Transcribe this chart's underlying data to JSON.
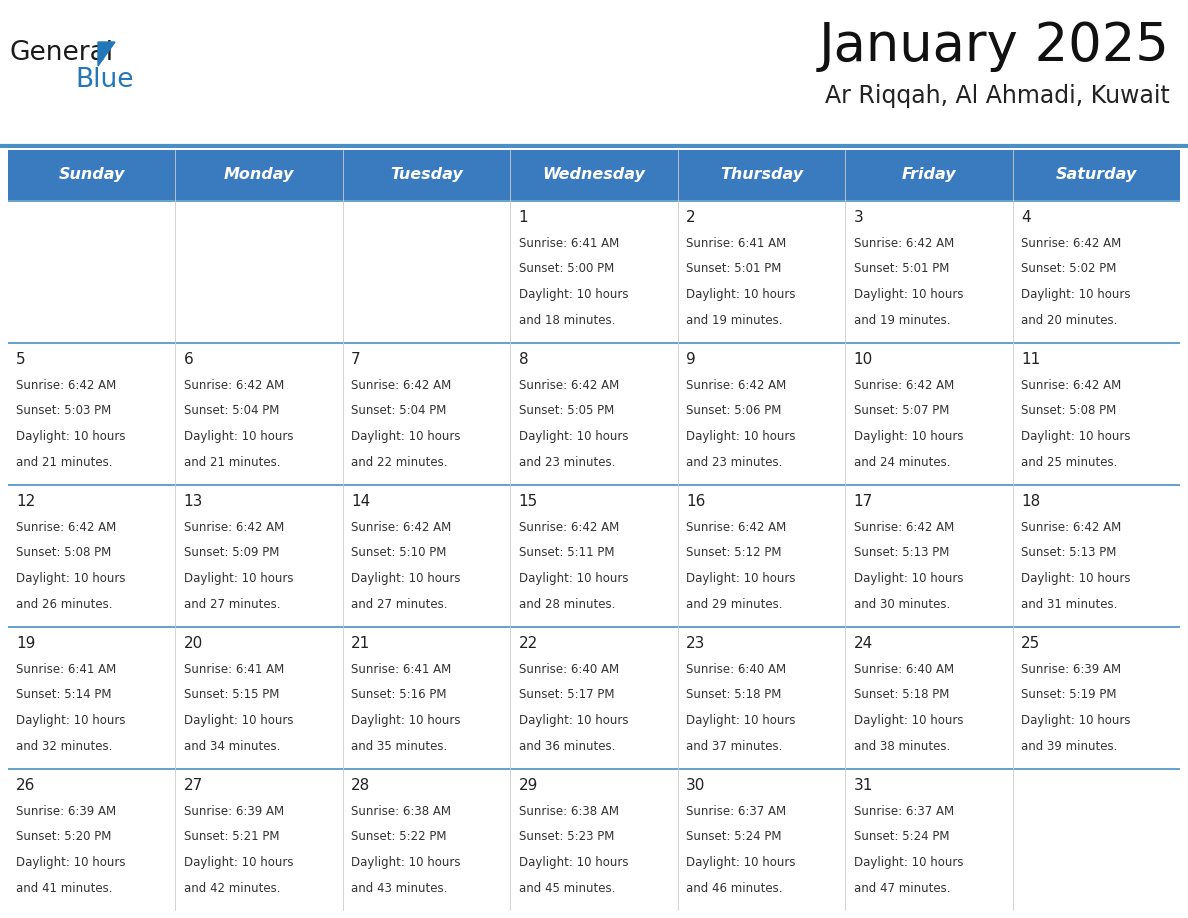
{
  "title": "January 2025",
  "subtitle": "Ar Riqqah, Al Ahmadi, Kuwait",
  "days_of_week": [
    "Sunday",
    "Monday",
    "Tuesday",
    "Wednesday",
    "Thursday",
    "Friday",
    "Saturday"
  ],
  "header_bg": "#3a7bbf",
  "header_text": "#ffffff",
  "cell_bg_even": "#f9f9f9",
  "cell_bg_odd": "#ffffff",
  "border_color": "#4a90c4",
  "row_border_color": "#4a90c4",
  "text_color": "#333333",
  "day_number_color": "#222222",
  "calendar_data": [
    [
      {
        "day": null,
        "sunrise": null,
        "sunset": null,
        "daylight": null
      },
      {
        "day": null,
        "sunrise": null,
        "sunset": null,
        "daylight": null
      },
      {
        "day": null,
        "sunrise": null,
        "sunset": null,
        "daylight": null
      },
      {
        "day": 1,
        "sunrise": "6:41 AM",
        "sunset": "5:00 PM",
        "daylight": "10 hours\nand 18 minutes."
      },
      {
        "day": 2,
        "sunrise": "6:41 AM",
        "sunset": "5:01 PM",
        "daylight": "10 hours\nand 19 minutes."
      },
      {
        "day": 3,
        "sunrise": "6:42 AM",
        "sunset": "5:01 PM",
        "daylight": "10 hours\nand 19 minutes."
      },
      {
        "day": 4,
        "sunrise": "6:42 AM",
        "sunset": "5:02 PM",
        "daylight": "10 hours\nand 20 minutes."
      }
    ],
    [
      {
        "day": 5,
        "sunrise": "6:42 AM",
        "sunset": "5:03 PM",
        "daylight": "10 hours\nand 21 minutes."
      },
      {
        "day": 6,
        "sunrise": "6:42 AM",
        "sunset": "5:04 PM",
        "daylight": "10 hours\nand 21 minutes."
      },
      {
        "day": 7,
        "sunrise": "6:42 AM",
        "sunset": "5:04 PM",
        "daylight": "10 hours\nand 22 minutes."
      },
      {
        "day": 8,
        "sunrise": "6:42 AM",
        "sunset": "5:05 PM",
        "daylight": "10 hours\nand 23 minutes."
      },
      {
        "day": 9,
        "sunrise": "6:42 AM",
        "sunset": "5:06 PM",
        "daylight": "10 hours\nand 23 minutes."
      },
      {
        "day": 10,
        "sunrise": "6:42 AM",
        "sunset": "5:07 PM",
        "daylight": "10 hours\nand 24 minutes."
      },
      {
        "day": 11,
        "sunrise": "6:42 AM",
        "sunset": "5:08 PM",
        "daylight": "10 hours\nand 25 minutes."
      }
    ],
    [
      {
        "day": 12,
        "sunrise": "6:42 AM",
        "sunset": "5:08 PM",
        "daylight": "10 hours\nand 26 minutes."
      },
      {
        "day": 13,
        "sunrise": "6:42 AM",
        "sunset": "5:09 PM",
        "daylight": "10 hours\nand 27 minutes."
      },
      {
        "day": 14,
        "sunrise": "6:42 AM",
        "sunset": "5:10 PM",
        "daylight": "10 hours\nand 27 minutes."
      },
      {
        "day": 15,
        "sunrise": "6:42 AM",
        "sunset": "5:11 PM",
        "daylight": "10 hours\nand 28 minutes."
      },
      {
        "day": 16,
        "sunrise": "6:42 AM",
        "sunset": "5:12 PM",
        "daylight": "10 hours\nand 29 minutes."
      },
      {
        "day": 17,
        "sunrise": "6:42 AM",
        "sunset": "5:13 PM",
        "daylight": "10 hours\nand 30 minutes."
      },
      {
        "day": 18,
        "sunrise": "6:42 AM",
        "sunset": "5:13 PM",
        "daylight": "10 hours\nand 31 minutes."
      }
    ],
    [
      {
        "day": 19,
        "sunrise": "6:41 AM",
        "sunset": "5:14 PM",
        "daylight": "10 hours\nand 32 minutes."
      },
      {
        "day": 20,
        "sunrise": "6:41 AM",
        "sunset": "5:15 PM",
        "daylight": "10 hours\nand 34 minutes."
      },
      {
        "day": 21,
        "sunrise": "6:41 AM",
        "sunset": "5:16 PM",
        "daylight": "10 hours\nand 35 minutes."
      },
      {
        "day": 22,
        "sunrise": "6:40 AM",
        "sunset": "5:17 PM",
        "daylight": "10 hours\nand 36 minutes."
      },
      {
        "day": 23,
        "sunrise": "6:40 AM",
        "sunset": "5:18 PM",
        "daylight": "10 hours\nand 37 minutes."
      },
      {
        "day": 24,
        "sunrise": "6:40 AM",
        "sunset": "5:18 PM",
        "daylight": "10 hours\nand 38 minutes."
      },
      {
        "day": 25,
        "sunrise": "6:39 AM",
        "sunset": "5:19 PM",
        "daylight": "10 hours\nand 39 minutes."
      }
    ],
    [
      {
        "day": 26,
        "sunrise": "6:39 AM",
        "sunset": "5:20 PM",
        "daylight": "10 hours\nand 41 minutes."
      },
      {
        "day": 27,
        "sunrise": "6:39 AM",
        "sunset": "5:21 PM",
        "daylight": "10 hours\nand 42 minutes."
      },
      {
        "day": 28,
        "sunrise": "6:38 AM",
        "sunset": "5:22 PM",
        "daylight": "10 hours\nand 43 minutes."
      },
      {
        "day": 29,
        "sunrise": "6:38 AM",
        "sunset": "5:23 PM",
        "daylight": "10 hours\nand 45 minutes."
      },
      {
        "day": 30,
        "sunrise": "6:37 AM",
        "sunset": "5:24 PM",
        "daylight": "10 hours\nand 46 minutes."
      },
      {
        "day": 31,
        "sunrise": "6:37 AM",
        "sunset": "5:24 PM",
        "daylight": "10 hours\nand 47 minutes."
      },
      {
        "day": null,
        "sunrise": null,
        "sunset": null,
        "daylight": null
      }
    ]
  ],
  "logo_color_general": "#1a1a1a",
  "logo_color_blue": "#2277bb",
  "logo_triangle_color": "#2277bb",
  "fig_width": 11.88,
  "fig_height": 9.18,
  "dpi": 100
}
